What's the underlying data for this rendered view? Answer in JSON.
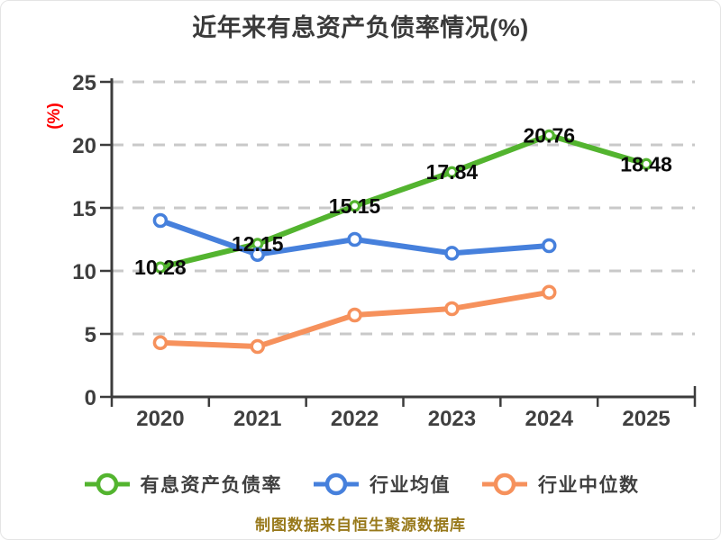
{
  "title": "近年来有息资产负债率情况(%)",
  "footer": "制图数据来自恒生聚源数据库",
  "colors": {
    "ylabel": "#ff0000",
    "axis": "#3c3c3c",
    "tick_text": "#3f3f3f",
    "grid": "#c9c9c9",
    "data_label": "#0a0a0a",
    "footer_text": "#98791b",
    "marker_fill": "#ffffff"
  },
  "chart_data": {
    "type": "line",
    "title": "近年来有息资产负债率情况(%)",
    "ylabel": "(%)",
    "xlabel": "",
    "categories": [
      "2020",
      "2021",
      "2022",
      "2023",
      "2024",
      "2025"
    ],
    "ylim": [
      0,
      25
    ],
    "yticks": [
      0,
      5,
      10,
      15,
      20,
      25
    ],
    "grid": "horizontal-dashed",
    "legend_position": "bottom",
    "series": [
      {
        "name": "有息资产负债率",
        "color": "#53b42f",
        "values": [
          10.28,
          12.15,
          15.15,
          17.84,
          20.76,
          18.48
        ],
        "labels": [
          "10.28",
          "12.15",
          "15.15",
          "17.84",
          "20.76",
          "18.48"
        ]
      },
      {
        "name": "行业均值",
        "color": "#4680dc",
        "values": [
          14.0,
          11.3,
          12.5,
          11.4,
          12.0
        ]
      },
      {
        "name": "行业中位数",
        "color": "#f6915c",
        "values": [
          4.3,
          4.0,
          6.5,
          7.0,
          8.3
        ]
      }
    ]
  }
}
